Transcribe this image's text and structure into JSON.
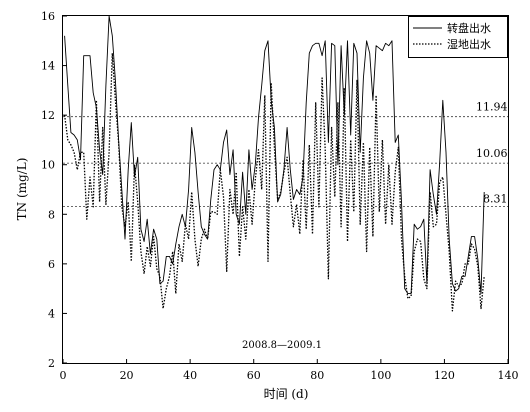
{
  "chart_data": {
    "type": "line",
    "xlabel": "时间 (d)",
    "ylabel": "TN (mg/L)",
    "xlim": [
      0,
      140
    ],
    "ylim": [
      2,
      16
    ],
    "xticks": [
      0,
      20,
      40,
      60,
      80,
      100,
      120,
      140
    ],
    "yticks": [
      2,
      4,
      6,
      8,
      10,
      12,
      14,
      16
    ],
    "grid": false,
    "legend_position": "top-right",
    "annotation": "2008.8—2009.1",
    "reference_lines": [
      {
        "value": 11.94,
        "label": "11.94"
      },
      {
        "value": 10.06,
        "label": "10.06"
      },
      {
        "value": 8.31,
        "label": "8.31"
      }
    ],
    "series": [
      {
        "name": "转盘出水",
        "style": "solid",
        "color": "#000000",
        "points": [
          [
            0.5,
            15.2
          ],
          [
            1.5,
            13.2
          ],
          [
            2.5,
            11.3
          ],
          [
            3.5,
            11.2
          ],
          [
            4.5,
            11.0
          ],
          [
            5.5,
            10.2
          ],
          [
            6.5,
            14.4
          ],
          [
            7.5,
            14.4
          ],
          [
            8.5,
            14.4
          ],
          [
            9.5,
            12.9
          ],
          [
            10.5,
            12.3
          ],
          [
            11.5,
            10.6
          ],
          [
            12.5,
            9.6
          ],
          [
            13.5,
            13.2
          ],
          [
            14.5,
            16.0
          ],
          [
            15.5,
            15.2
          ],
          [
            16.5,
            13.4
          ],
          [
            17.5,
            11.0
          ],
          [
            18.5,
            9.0
          ],
          [
            19.5,
            7.0
          ],
          [
            20.5,
            9.8
          ],
          [
            21.5,
            11.7
          ],
          [
            22.5,
            9.5
          ],
          [
            23.5,
            10.3
          ],
          [
            24.5,
            7.4
          ],
          [
            25.5,
            6.9
          ],
          [
            26.5,
            7.8
          ],
          [
            27.5,
            6.4
          ],
          [
            28.5,
            7.4
          ],
          [
            29.5,
            7.0
          ],
          [
            30.5,
            5.2
          ],
          [
            31.5,
            5.3
          ],
          [
            32.5,
            6.3
          ],
          [
            33.5,
            6.3
          ],
          [
            34.5,
            6.0
          ],
          [
            35.5,
            6.8
          ],
          [
            36.5,
            7.5
          ],
          [
            37.5,
            8.0
          ],
          [
            38.5,
            7.5
          ],
          [
            39.5,
            9.0
          ],
          [
            40.5,
            11.5
          ],
          [
            41.5,
            10.5
          ],
          [
            42.5,
            8.9
          ],
          [
            43.5,
            7.5
          ],
          [
            44.5,
            7.2
          ],
          [
            45.5,
            7.0
          ],
          [
            46.5,
            8.6
          ],
          [
            47.5,
            9.8
          ],
          [
            48.5,
            10.0
          ],
          [
            49.5,
            9.8
          ],
          [
            50.5,
            10.9
          ],
          [
            51.5,
            11.4
          ],
          [
            52.5,
            9.6
          ],
          [
            53.5,
            10.6
          ],
          [
            54.5,
            8.0
          ],
          [
            55.5,
            7.6
          ],
          [
            56.5,
            9.7
          ],
          [
            57.5,
            8.0
          ],
          [
            58.5,
            10.6
          ],
          [
            59.5,
            9.0
          ],
          [
            60.5,
            10.0
          ],
          [
            61.5,
            11.9
          ],
          [
            62.5,
            13.2
          ],
          [
            63.5,
            14.6
          ],
          [
            64.5,
            15.0
          ],
          [
            65.5,
            12.6
          ],
          [
            66.5,
            11.5
          ],
          [
            67.5,
            8.5
          ],
          [
            68.5,
            8.8
          ],
          [
            69.5,
            9.8
          ],
          [
            70.5,
            11.5
          ],
          [
            71.5,
            9.8
          ],
          [
            72.5,
            8.6
          ],
          [
            73.5,
            9.0
          ],
          [
            74.5,
            8.8
          ],
          [
            75.5,
            9.5
          ],
          [
            76.5,
            12.5
          ],
          [
            77.5,
            14.5
          ],
          [
            78.5,
            14.8
          ],
          [
            79.5,
            14.9
          ],
          [
            80.5,
            14.9
          ],
          [
            81.5,
            14.4
          ],
          [
            82.5,
            15.0
          ],
          [
            83.5,
            10.9
          ],
          [
            84.5,
            14.9
          ],
          [
            85.5,
            14.8
          ],
          [
            86.5,
            10.0
          ],
          [
            87.5,
            14.8
          ],
          [
            88.5,
            12.0
          ],
          [
            89.5,
            15.0
          ],
          [
            90.5,
            11.2
          ],
          [
            91.5,
            14.9
          ],
          [
            92.5,
            14.5
          ],
          [
            93.5,
            10.5
          ],
          [
            94.5,
            13.5
          ],
          [
            95.5,
            15.0
          ],
          [
            96.5,
            14.5
          ],
          [
            97.5,
            12.6
          ],
          [
            98.5,
            14.8
          ],
          [
            99.5,
            14.7
          ],
          [
            100.5,
            14.6
          ],
          [
            101.5,
            14.9
          ],
          [
            102.5,
            14.8
          ],
          [
            103.5,
            15.0
          ],
          [
            104.5,
            10.9
          ],
          [
            105.5,
            11.2
          ],
          [
            106.5,
            8.5
          ],
          [
            107.5,
            5.0
          ],
          [
            108.5,
            4.8
          ],
          [
            109.5,
            4.8
          ],
          [
            110.5,
            7.6
          ],
          [
            111.5,
            7.4
          ],
          [
            112.5,
            7.5
          ],
          [
            113.5,
            7.8
          ],
          [
            114.5,
            5.2
          ],
          [
            115.5,
            9.8
          ],
          [
            116.5,
            8.8
          ],
          [
            117.5,
            8.0
          ],
          [
            118.5,
            10.1
          ],
          [
            119.5,
            12.6
          ],
          [
            120.5,
            10.5
          ],
          [
            121.5,
            7.0
          ],
          [
            122.5,
            5.2
          ],
          [
            123.5,
            4.9
          ],
          [
            124.5,
            5.0
          ],
          [
            125.5,
            5.5
          ],
          [
            126.5,
            5.5
          ],
          [
            127.5,
            6.3
          ],
          [
            128.5,
            7.1
          ],
          [
            129.5,
            7.1
          ],
          [
            130.5,
            6.2
          ],
          [
            131.5,
            4.8
          ],
          [
            132.5,
            8.9
          ]
        ]
      },
      {
        "name": "湿地出水",
        "style": "dotted",
        "color": "#000000",
        "points": [
          [
            0.5,
            12.0
          ],
          [
            1.5,
            11.0
          ],
          [
            2.5,
            10.8
          ],
          [
            3.5,
            10.5
          ],
          [
            4.5,
            9.8
          ],
          [
            5.5,
            10.5
          ],
          [
            6.5,
            10.5
          ],
          [
            7.5,
            7.8
          ],
          [
            8.5,
            9.5
          ],
          [
            9.5,
            8.3
          ],
          [
            10.5,
            12.6
          ],
          [
            11.5,
            8.5
          ],
          [
            12.5,
            11.5
          ],
          [
            13.5,
            8.4
          ],
          [
            14.5,
            10.5
          ],
          [
            15.5,
            14.5
          ],
          [
            16.5,
            12.6
          ],
          [
            17.5,
            10.9
          ],
          [
            18.5,
            8.3
          ],
          [
            19.5,
            7.5
          ],
          [
            20.5,
            8.5
          ],
          [
            21.5,
            6.1
          ],
          [
            22.5,
            10.0
          ],
          [
            23.5,
            8.5
          ],
          [
            24.5,
            6.5
          ],
          [
            25.5,
            5.6
          ],
          [
            26.5,
            6.7
          ],
          [
            27.5,
            5.9
          ],
          [
            28.5,
            7.1
          ],
          [
            29.5,
            5.8
          ],
          [
            30.5,
            5.5
          ],
          [
            31.5,
            4.2
          ],
          [
            32.5,
            5.0
          ],
          [
            33.5,
            5.5
          ],
          [
            34.5,
            6.5
          ],
          [
            35.5,
            4.8
          ],
          [
            36.5,
            6.8
          ],
          [
            37.5,
            6.1
          ],
          [
            38.5,
            7.6
          ],
          [
            39.5,
            7.0
          ],
          [
            40.5,
            8.9
          ],
          [
            41.5,
            7.0
          ],
          [
            42.5,
            5.9
          ],
          [
            43.5,
            7.0
          ],
          [
            44.5,
            7.4
          ],
          [
            45.5,
            7.0
          ],
          [
            46.5,
            8.1
          ],
          [
            47.5,
            8.1
          ],
          [
            48.5,
            8.0
          ],
          [
            49.5,
            9.8
          ],
          [
            50.5,
            8.7
          ],
          [
            51.5,
            5.7
          ],
          [
            52.5,
            9.0
          ],
          [
            53.5,
            8.0
          ],
          [
            54.5,
            9.7
          ],
          [
            55.5,
            6.3
          ],
          [
            56.5,
            8.3
          ],
          [
            57.5,
            7.0
          ],
          [
            58.5,
            9.0
          ],
          [
            59.5,
            7.6
          ],
          [
            60.5,
            9.4
          ],
          [
            61.5,
            10.6
          ],
          [
            62.5,
            9.0
          ],
          [
            63.5,
            12.8
          ],
          [
            64.5,
            6.1
          ],
          [
            65.5,
            13.3
          ],
          [
            66.5,
            10.7
          ],
          [
            67.5,
            8.6
          ],
          [
            68.5,
            8.9
          ],
          [
            69.5,
            9.7
          ],
          [
            70.5,
            10.3
          ],
          [
            71.5,
            8.8
          ],
          [
            72.5,
            7.5
          ],
          [
            73.5,
            8.4
          ],
          [
            74.5,
            7.2
          ],
          [
            75.5,
            10.2
          ],
          [
            76.5,
            7.4
          ],
          [
            77.5,
            10.8
          ],
          [
            78.5,
            7.2
          ],
          [
            79.5,
            12.5
          ],
          [
            80.5,
            8.3
          ],
          [
            81.5,
            13.5
          ],
          [
            82.5,
            10.6
          ],
          [
            83.5,
            5.4
          ],
          [
            84.5,
            11.5
          ],
          [
            85.5,
            8.7
          ],
          [
            86.5,
            12.5
          ],
          [
            87.5,
            7.5
          ],
          [
            88.5,
            13.1
          ],
          [
            89.5,
            6.9
          ],
          [
            90.5,
            11.0
          ],
          [
            91.5,
            8.1
          ],
          [
            92.5,
            13.4
          ],
          [
            93.5,
            7.6
          ],
          [
            94.5,
            10.9
          ],
          [
            95.5,
            6.5
          ],
          [
            96.5,
            10.7
          ],
          [
            97.5,
            7.1
          ],
          [
            98.5,
            12.8
          ],
          [
            99.5,
            8.1
          ],
          [
            100.5,
            11.0
          ],
          [
            101.5,
            7.6
          ],
          [
            102.5,
            10.0
          ],
          [
            103.5,
            7.6
          ],
          [
            104.5,
            9.7
          ],
          [
            105.5,
            10.7
          ],
          [
            106.5,
            7.0
          ],
          [
            107.5,
            5.5
          ],
          [
            108.5,
            4.6
          ],
          [
            109.5,
            4.7
          ],
          [
            110.5,
            6.5
          ],
          [
            111.5,
            7.0
          ],
          [
            112.5,
            6.9
          ],
          [
            113.5,
            5.4
          ],
          [
            114.5,
            5.0
          ],
          [
            115.5,
            8.9
          ],
          [
            116.5,
            7.5
          ],
          [
            117.5,
            7.6
          ],
          [
            118.5,
            9.3
          ],
          [
            119.5,
            9.5
          ],
          [
            120.5,
            8.0
          ],
          [
            121.5,
            6.5
          ],
          [
            122.5,
            4.1
          ],
          [
            123.5,
            5.3
          ],
          [
            124.5,
            5.1
          ],
          [
            125.5,
            5.2
          ],
          [
            126.5,
            6.0
          ],
          [
            127.5,
            6.0
          ],
          [
            128.5,
            6.8
          ],
          [
            129.5,
            6.6
          ],
          [
            130.5,
            5.9
          ],
          [
            131.5,
            4.2
          ],
          [
            132.5,
            5.5
          ]
        ]
      }
    ]
  }
}
